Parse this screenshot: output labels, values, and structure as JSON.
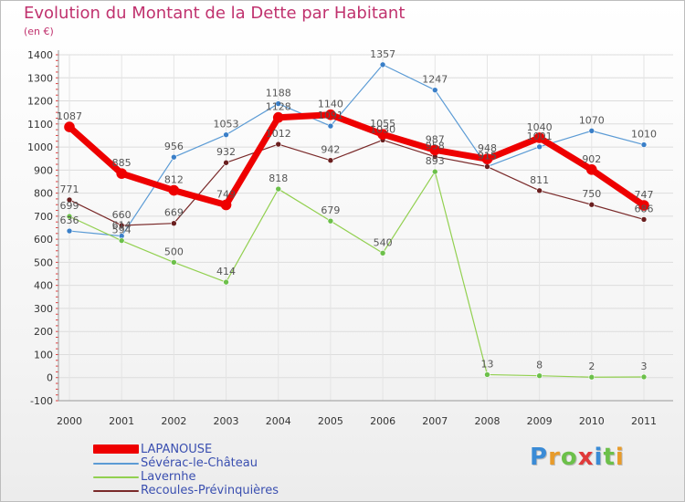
{
  "header": {
    "title": "Evolution du Montant de la Dette par Habitant",
    "subtitle": "(en €)"
  },
  "logo": {
    "text": "Proxiti",
    "colors": [
      "#3a8bd6",
      "#e89b2a",
      "#6cc04a",
      "#e03a3a",
      "#3a8bd6",
      "#6cc04a",
      "#e89b2a"
    ]
  },
  "chart_data": {
    "type": "line",
    "x": [
      "2000",
      "2001",
      "2002",
      "2003",
      "2004",
      "2005",
      "2006",
      "2007",
      "2008",
      "2009",
      "2010",
      "2011"
    ],
    "yticks": [
      -100,
      0,
      100,
      200,
      300,
      400,
      500,
      600,
      700,
      800,
      900,
      1000,
      1100,
      1200,
      1300,
      1400
    ],
    "ylim": [
      -100,
      1400
    ],
    "grid": true,
    "legend_position": "bottom-left",
    "series": [
      {
        "name": "Sévérac-le-Château",
        "color": "#5b9bd5",
        "marker": "#3a7fc8",
        "width": 1.2,
        "values": [
          636,
          614,
          956,
          1053,
          1188,
          1091,
          1357,
          1247,
          915,
          1001,
          1070,
          1010
        ]
      },
      {
        "name": "Lavernhe",
        "color": "#92d050",
        "marker": "#6cc04a",
        "width": 1.2,
        "values": [
          699,
          594,
          500,
          414,
          818,
          679,
          540,
          893,
          13,
          8,
          2,
          3
        ]
      },
      {
        "name": "Recoules-Prévinquières",
        "color": "#7a2a2a",
        "marker": "#6a1f1f",
        "width": 1.2,
        "values": [
          771,
          660,
          669,
          932,
          1012,
          942,
          1030,
          958,
          915,
          811,
          750,
          686
        ]
      },
      {
        "name": "LAPANOUSE",
        "color": "#ee0000",
        "marker": "#ee0000",
        "width": 7,
        "values": [
          1087,
          885,
          812,
          749,
          1128,
          1140,
          1055,
          987,
          948,
          1040,
          902,
          747
        ]
      }
    ],
    "data_labels": [
      {
        "series": 0,
        "labels": [
          "636",
          "614",
          "956",
          "1053",
          "1188",
          "1091",
          "1357",
          "1247",
          "915",
          "1001",
          "1070",
          "1010"
        ]
      },
      {
        "series": 1,
        "labels": [
          "699",
          "594",
          "500",
          "414",
          "818",
          "679",
          "540",
          "893",
          "13",
          "8",
          "2",
          "3"
        ]
      },
      {
        "series": 2,
        "labels": [
          "771",
          "660",
          "669",
          "932",
          "1012",
          "942",
          "1030",
          "958",
          "915",
          "811",
          "750",
          "686"
        ]
      },
      {
        "series": 3,
        "labels": [
          "1087",
          "885",
          "812",
          "749",
          "1128",
          "1140",
          "1055",
          "987",
          "948",
          "1040",
          "902",
          "747"
        ]
      }
    ]
  },
  "legend": [
    {
      "label": "LAPANOUSE",
      "color": "#ee0000",
      "thick": true
    },
    {
      "label": "Sévérac-le-Château",
      "color": "#5b9bd5",
      "thick": false
    },
    {
      "label": "Lavernhe",
      "color": "#92d050",
      "thick": false
    },
    {
      "label": "Recoules-Prévinquières",
      "color": "#7a2a2a",
      "thick": false
    }
  ]
}
